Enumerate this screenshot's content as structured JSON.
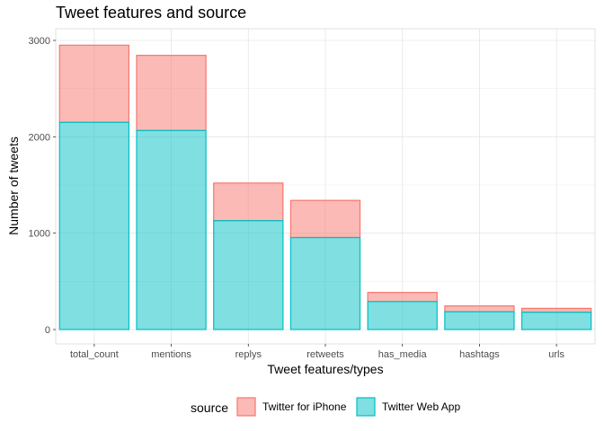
{
  "chart_data": {
    "type": "bar",
    "stacked": true,
    "title": "Tweet features and source",
    "xlabel": "Tweet features/types",
    "ylabel": "Number of tweets",
    "categories": [
      "total_count",
      "mentions",
      "replys",
      "retweets",
      "has_media",
      "hashtags",
      "urls"
    ],
    "series": [
      {
        "name": "Twitter for iPhone",
        "values": [
          800,
          780,
          390,
          385,
          95,
          60,
          40
        ],
        "fill": "#F8766D",
        "stroke": "#F8766D"
      },
      {
        "name": "Twitter Web App",
        "values": [
          2150,
          2065,
          1130,
          955,
          290,
          185,
          180
        ],
        "fill": "#00BFC4",
        "stroke": "#00BFC4"
      }
    ],
    "ylim": [
      0,
      3000
    ],
    "yticks": [
      0,
      1000,
      2000,
      3000
    ],
    "grid": true,
    "legend_position": "bottom",
    "legend_title": "source"
  }
}
